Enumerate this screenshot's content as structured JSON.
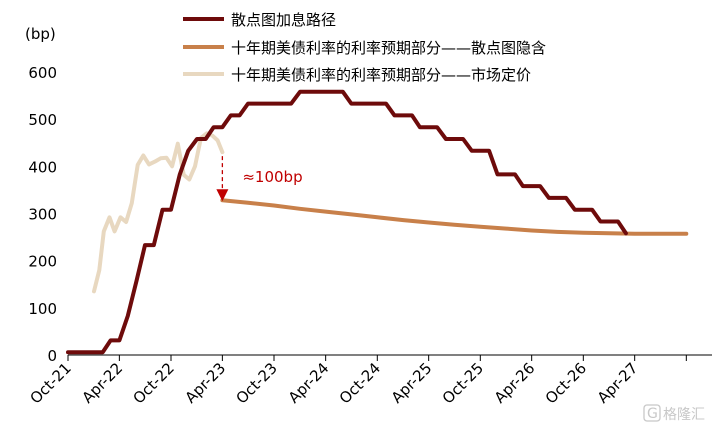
{
  "chart_data": {
    "type": "line",
    "y_unit": "(bp)",
    "ylim": [
      0,
      600
    ],
    "yticks": [
      0,
      100,
      200,
      300,
      400,
      500,
      600
    ],
    "x_tick_labels": [
      "Oct-21",
      "Apr-22",
      "Oct-22",
      "Apr-23",
      "Oct-23",
      "Apr-24",
      "Oct-24",
      "Apr-25",
      "Oct-25",
      "Apr-26",
      "Oct-26",
      "Apr-27"
    ],
    "legend_position": "top",
    "grid": false,
    "series": [
      {
        "name": "散点图加息路径",
        "color": "#6e0b0b",
        "points": [
          [
            "2021-10-01",
            6
          ],
          [
            "2021-11-01",
            6
          ],
          [
            "2021-12-01",
            6
          ],
          [
            "2022-01-01",
            6
          ],
          [
            "2022-02-01",
            6
          ],
          [
            "2022-03-01",
            31
          ],
          [
            "2022-04-01",
            31
          ],
          [
            "2022-05-01",
            83
          ],
          [
            "2022-06-01",
            158
          ],
          [
            "2022-07-01",
            233
          ],
          [
            "2022-08-01",
            233
          ],
          [
            "2022-09-01",
            308
          ],
          [
            "2022-10-01",
            308
          ],
          [
            "2022-11-01",
            383
          ],
          [
            "2022-12-01",
            433
          ],
          [
            "2023-01-01",
            458
          ],
          [
            "2023-02-01",
            458
          ],
          [
            "2023-03-01",
            483
          ],
          [
            "2023-04-01",
            483
          ],
          [
            "2023-05-01",
            508
          ],
          [
            "2023-06-01",
            508
          ],
          [
            "2023-07-01",
            533
          ],
          [
            "2023-08-01",
            533
          ],
          [
            "2023-09-01",
            533
          ],
          [
            "2023-10-01",
            533
          ],
          [
            "2023-11-01",
            533
          ],
          [
            "2023-12-01",
            533
          ],
          [
            "2024-01-01",
            558
          ],
          [
            "2024-02-01",
            558
          ],
          [
            "2024-03-01",
            558
          ],
          [
            "2024-04-01",
            558
          ],
          [
            "2024-05-01",
            558
          ],
          [
            "2024-06-01",
            558
          ],
          [
            "2024-07-01",
            533
          ],
          [
            "2024-08-01",
            533
          ],
          [
            "2024-09-01",
            533
          ],
          [
            "2024-10-01",
            533
          ],
          [
            "2024-11-01",
            533
          ],
          [
            "2024-12-01",
            508
          ],
          [
            "2025-01-01",
            508
          ],
          [
            "2025-02-01",
            508
          ],
          [
            "2025-03-01",
            483
          ],
          [
            "2025-04-01",
            483
          ],
          [
            "2025-05-01",
            483
          ],
          [
            "2025-06-01",
            458
          ],
          [
            "2025-07-01",
            458
          ],
          [
            "2025-08-01",
            458
          ],
          [
            "2025-09-01",
            433
          ],
          [
            "2025-10-01",
            433
          ],
          [
            "2025-11-01",
            433
          ],
          [
            "2025-12-01",
            383
          ],
          [
            "2026-01-01",
            383
          ],
          [
            "2026-02-01",
            383
          ],
          [
            "2026-03-01",
            358
          ],
          [
            "2026-04-01",
            358
          ],
          [
            "2026-05-01",
            358
          ],
          [
            "2026-06-01",
            333
          ],
          [
            "2026-07-01",
            333
          ],
          [
            "2026-08-01",
            333
          ],
          [
            "2026-09-01",
            308
          ],
          [
            "2026-10-01",
            308
          ],
          [
            "2026-11-01",
            308
          ],
          [
            "2026-12-01",
            283
          ],
          [
            "2027-01-01",
            283
          ],
          [
            "2027-02-01",
            283
          ],
          [
            "2027-03-01",
            258
          ]
        ]
      },
      {
        "name": "十年期美债利率的利率预期部分——散点图隐含",
        "color": "#c8804a",
        "points": [
          [
            "2023-04-01",
            328
          ],
          [
            "2023-07-01",
            323
          ],
          [
            "2023-10-01",
            317
          ],
          [
            "2024-01-01",
            310
          ],
          [
            "2024-04-01",
            304
          ],
          [
            "2024-07-01",
            298
          ],
          [
            "2024-10-01",
            292
          ],
          [
            "2025-01-01",
            286
          ],
          [
            "2025-04-01",
            281
          ],
          [
            "2025-07-01",
            276
          ],
          [
            "2025-10-01",
            272
          ],
          [
            "2026-01-01",
            268
          ],
          [
            "2026-04-01",
            264
          ],
          [
            "2026-07-01",
            261
          ],
          [
            "2026-10-01",
            259
          ],
          [
            "2027-01-01",
            258
          ],
          [
            "2027-04-01",
            257
          ],
          [
            "2027-07-01",
            257
          ],
          [
            "2027-10-01",
            257
          ]
        ]
      },
      {
        "name": "十年期美债利率的利率预期部分——市场定价",
        "color": "#e8d8c0",
        "points": [
          [
            "2022-01-01",
            135
          ],
          [
            "2022-01-20",
            180
          ],
          [
            "2022-02-05",
            262
          ],
          [
            "2022-02-25",
            292
          ],
          [
            "2022-03-15",
            262
          ],
          [
            "2022-04-05",
            292
          ],
          [
            "2022-04-25",
            282
          ],
          [
            "2022-05-15",
            322
          ],
          [
            "2022-06-05",
            403
          ],
          [
            "2022-06-25",
            423
          ],
          [
            "2022-07-15",
            404
          ],
          [
            "2022-08-05",
            410
          ],
          [
            "2022-08-25",
            417
          ],
          [
            "2022-09-15",
            418
          ],
          [
            "2022-10-05",
            400
          ],
          [
            "2022-10-25",
            448
          ],
          [
            "2022-11-15",
            382
          ],
          [
            "2022-12-05",
            372
          ],
          [
            "2022-12-25",
            400
          ],
          [
            "2023-01-15",
            460
          ],
          [
            "2023-02-05",
            470
          ],
          [
            "2023-02-25",
            465
          ],
          [
            "2023-03-15",
            455
          ],
          [
            "2023-04-01",
            430
          ]
        ]
      }
    ],
    "annotation": {
      "text": "≈100bp",
      "x": "2023-04-01",
      "y_from": 430,
      "y_to": 328
    }
  },
  "watermark": {
    "logo_glyph": "G",
    "text": "格隆汇"
  }
}
